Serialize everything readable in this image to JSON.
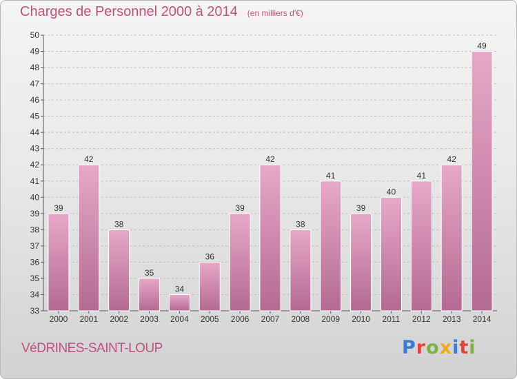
{
  "header": {
    "title": "Charges de Personnel 2000 à 2014",
    "subtitle": "(en milliers d'€)"
  },
  "footer": {
    "place": "VéDRINES-SAINT-LOUP",
    "logo_text": "Proxiti",
    "logo_colors": [
      "#3a7bd5",
      "#e5413f",
      "#7cb342",
      "#f2a81d",
      "#3a7bd5",
      "#e5413f",
      "#7cb342"
    ]
  },
  "colors": {
    "bar_light": "#e6a8c9",
    "bar_dark": "#b46a92",
    "title": "#c0507f",
    "axis": "#555555",
    "grid": "#bdbdbd"
  },
  "chart_data": {
    "type": "bar",
    "title": "Charges de Personnel 2000 à 2014",
    "subtitle": "(en milliers d'€)",
    "categories": [
      "2000",
      "2001",
      "2002",
      "2003",
      "2004",
      "2005",
      "2006",
      "2007",
      "2008",
      "2009",
      "2010",
      "2011",
      "2012",
      "2013",
      "2014"
    ],
    "values": [
      39,
      42,
      38,
      35,
      34,
      36,
      39,
      42,
      38,
      41,
      39,
      40,
      41,
      42,
      49
    ],
    "ylim": [
      33,
      50
    ],
    "yticks": [
      33,
      34,
      35,
      36,
      37,
      38,
      39,
      40,
      41,
      42,
      43,
      44,
      45,
      46,
      47,
      48,
      49,
      50
    ],
    "grid": true,
    "data_labels": true,
    "legend": "none"
  }
}
